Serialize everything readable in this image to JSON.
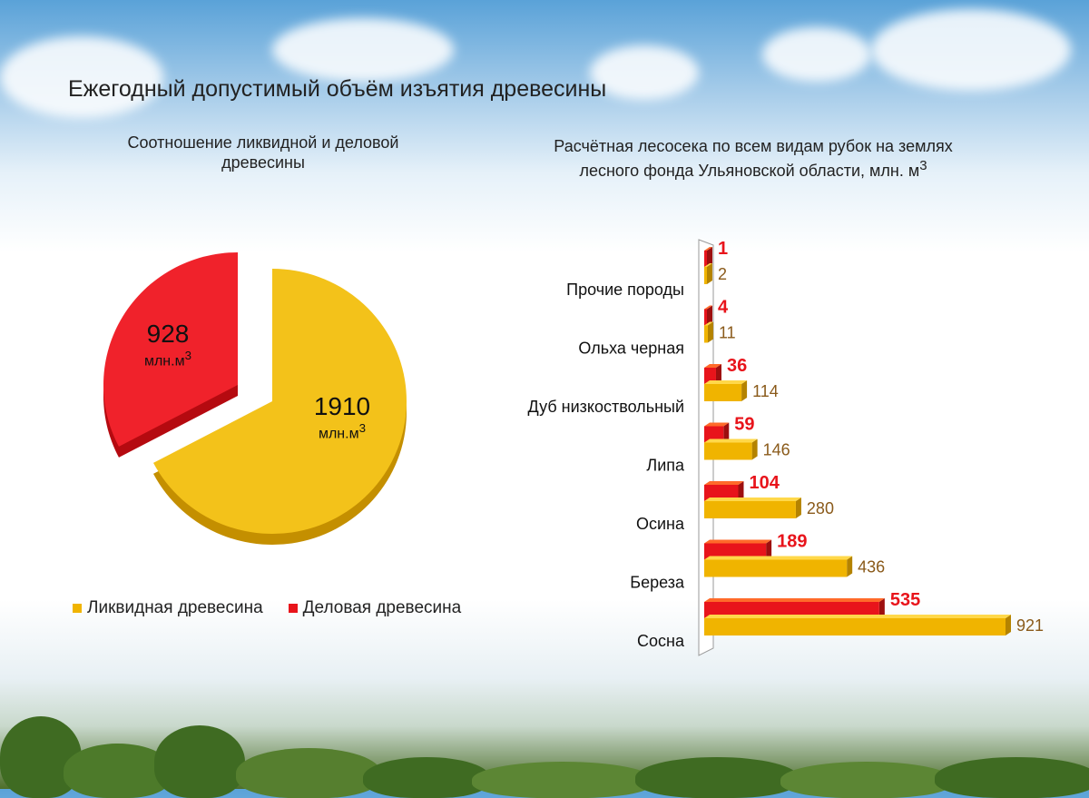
{
  "title": "Ежегодный  допустимый объём изъятия древесины",
  "pie": {
    "subtitle_line1": "Соотношение  ликвидной и деловой",
    "subtitle_line2": "древесины",
    "unit": "млн.м",
    "unit_sup": "3",
    "legend": [
      "Ликвидная древесина",
      "Деловая  древесина"
    ],
    "colors": [
      "#f0b400",
      "#e8141b"
    ]
  },
  "bar": {
    "subtitle_line1": "Расчётная лесосека по всем видам рубок на землях",
    "subtitle_line2": "лесного фонда Ульяновской области, млн. м",
    "subtitle_sup": "3"
  },
  "chart_data": [
    {
      "type": "pie",
      "title": "Соотношение  ликвидной и деловой древесины",
      "categories": [
        "Ликвидная древесина",
        "Деловая  древесина"
      ],
      "values": [
        1910,
        928
      ],
      "labels": [
        "1910",
        "928"
      ]
    },
    {
      "type": "bar",
      "orientation": "horizontal",
      "title": "Расчётная лесосека по всем видам рубок на землях лесного фонда Ульяновской области, млн. м3",
      "categories": [
        "Прочие породы",
        "Ольха черная",
        "Дуб низкоствольный",
        "Липа",
        "Осина",
        "Береза",
        "Сосна"
      ],
      "series": [
        {
          "name": "Деловая",
          "color": "#e8141b",
          "values": [
            1,
            4,
            36,
            59,
            104,
            189,
            535
          ]
        },
        {
          "name": "Ликвидная",
          "color": "#f0b400",
          "values": [
            2,
            11,
            114,
            146,
            280,
            436,
            921
          ]
        }
      ],
      "xlim": [
        0,
        921
      ]
    }
  ]
}
